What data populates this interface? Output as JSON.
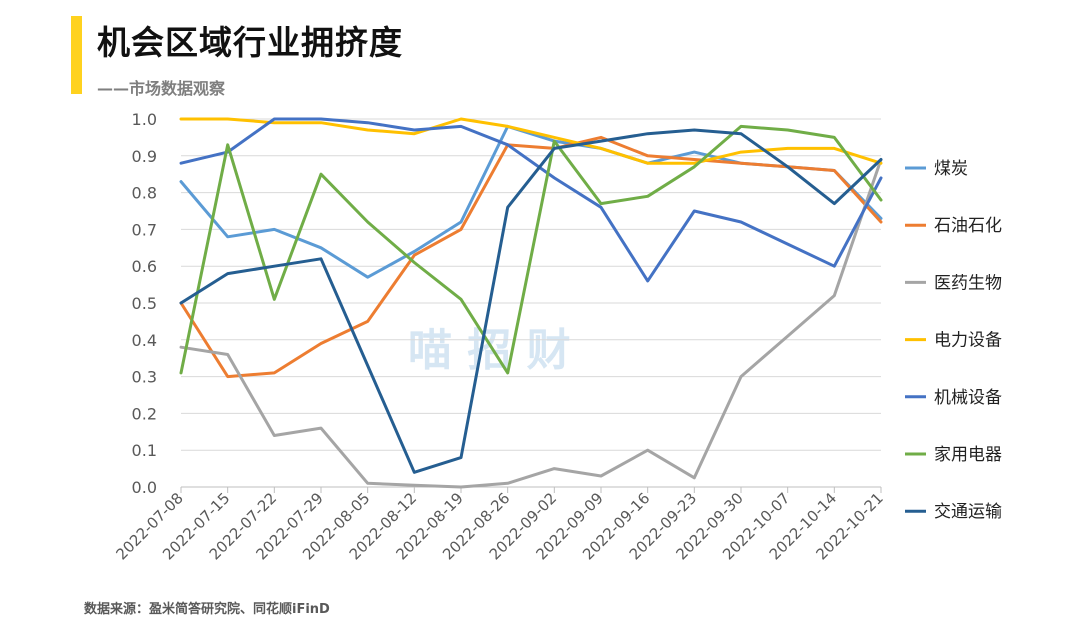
{
  "header": {
    "title": "机会区域行业拥挤度",
    "subtitle": "——市场数据观察"
  },
  "footer": {
    "source": "数据来源：盈米简答研究院、同花顺iFinD"
  },
  "watermark": "喵 招 财",
  "chart_data": {
    "type": "line",
    "x": [
      "2022-07-08",
      "2022-07-15",
      "2022-07-22",
      "2022-07-29",
      "2022-08-05",
      "2022-08-12",
      "2022-08-19",
      "2022-08-26",
      "2022-09-02",
      "2022-09-09",
      "2022-09-16",
      "2022-09-23",
      "2022-09-30",
      "2022-10-07",
      "2022-10-14",
      "2022-10-21"
    ],
    "y_ticks": [
      "0.0",
      "0.1",
      "0.2",
      "0.3",
      "0.4",
      "0.5",
      "0.6",
      "0.7",
      "0.8",
      "0.9",
      "1.0"
    ],
    "ylim": [
      0,
      1.0
    ],
    "grid": true,
    "legend_position": "right",
    "series": [
      {
        "name": "煤炭",
        "color": "#5B9BD5",
        "values": [
          0.83,
          0.68,
          0.7,
          0.65,
          0.57,
          0.64,
          0.72,
          0.98,
          0.94,
          0.92,
          0.88,
          0.91,
          0.88,
          0.87,
          0.86,
          0.73
        ]
      },
      {
        "name": "石油石化",
        "color": "#ED7D31",
        "values": [
          0.5,
          0.3,
          0.31,
          0.39,
          0.45,
          0.63,
          0.7,
          0.93,
          0.92,
          0.95,
          0.9,
          0.89,
          0.88,
          0.87,
          0.86,
          0.72
        ]
      },
      {
        "name": "医药生物",
        "color": "#A5A5A5",
        "values": [
          0.38,
          0.36,
          0.14,
          0.16,
          0.01,
          0.005,
          0.0,
          0.01,
          0.05,
          0.03,
          0.1,
          0.025,
          0.3,
          0.41,
          0.52,
          0.89
        ]
      },
      {
        "name": "电力设备",
        "color": "#FFC000",
        "values": [
          1.0,
          1.0,
          0.99,
          0.99,
          0.97,
          0.96,
          1.0,
          0.98,
          0.95,
          0.92,
          0.88,
          0.88,
          0.91,
          0.92,
          0.92,
          0.88
        ]
      },
      {
        "name": "机械设备",
        "color": "#4472C4",
        "values": [
          0.88,
          0.91,
          1.0,
          1.0,
          0.99,
          0.97,
          0.98,
          0.93,
          0.84,
          0.76,
          0.56,
          0.75,
          0.72,
          0.66,
          0.6,
          0.84
        ]
      },
      {
        "name": "家用电器",
        "color": "#70AD47",
        "values": [
          0.31,
          0.93,
          0.51,
          0.85,
          0.72,
          0.61,
          0.51,
          0.31,
          0.94,
          0.77,
          0.79,
          0.87,
          0.98,
          0.97,
          0.95,
          0.78
        ]
      },
      {
        "name": "交通运输",
        "color": "#255E91",
        "values": [
          0.5,
          0.58,
          0.6,
          0.62,
          0.33,
          0.04,
          0.08,
          0.76,
          0.92,
          0.94,
          0.96,
          0.97,
          0.96,
          0.87,
          0.77,
          0.89
        ]
      }
    ]
  }
}
